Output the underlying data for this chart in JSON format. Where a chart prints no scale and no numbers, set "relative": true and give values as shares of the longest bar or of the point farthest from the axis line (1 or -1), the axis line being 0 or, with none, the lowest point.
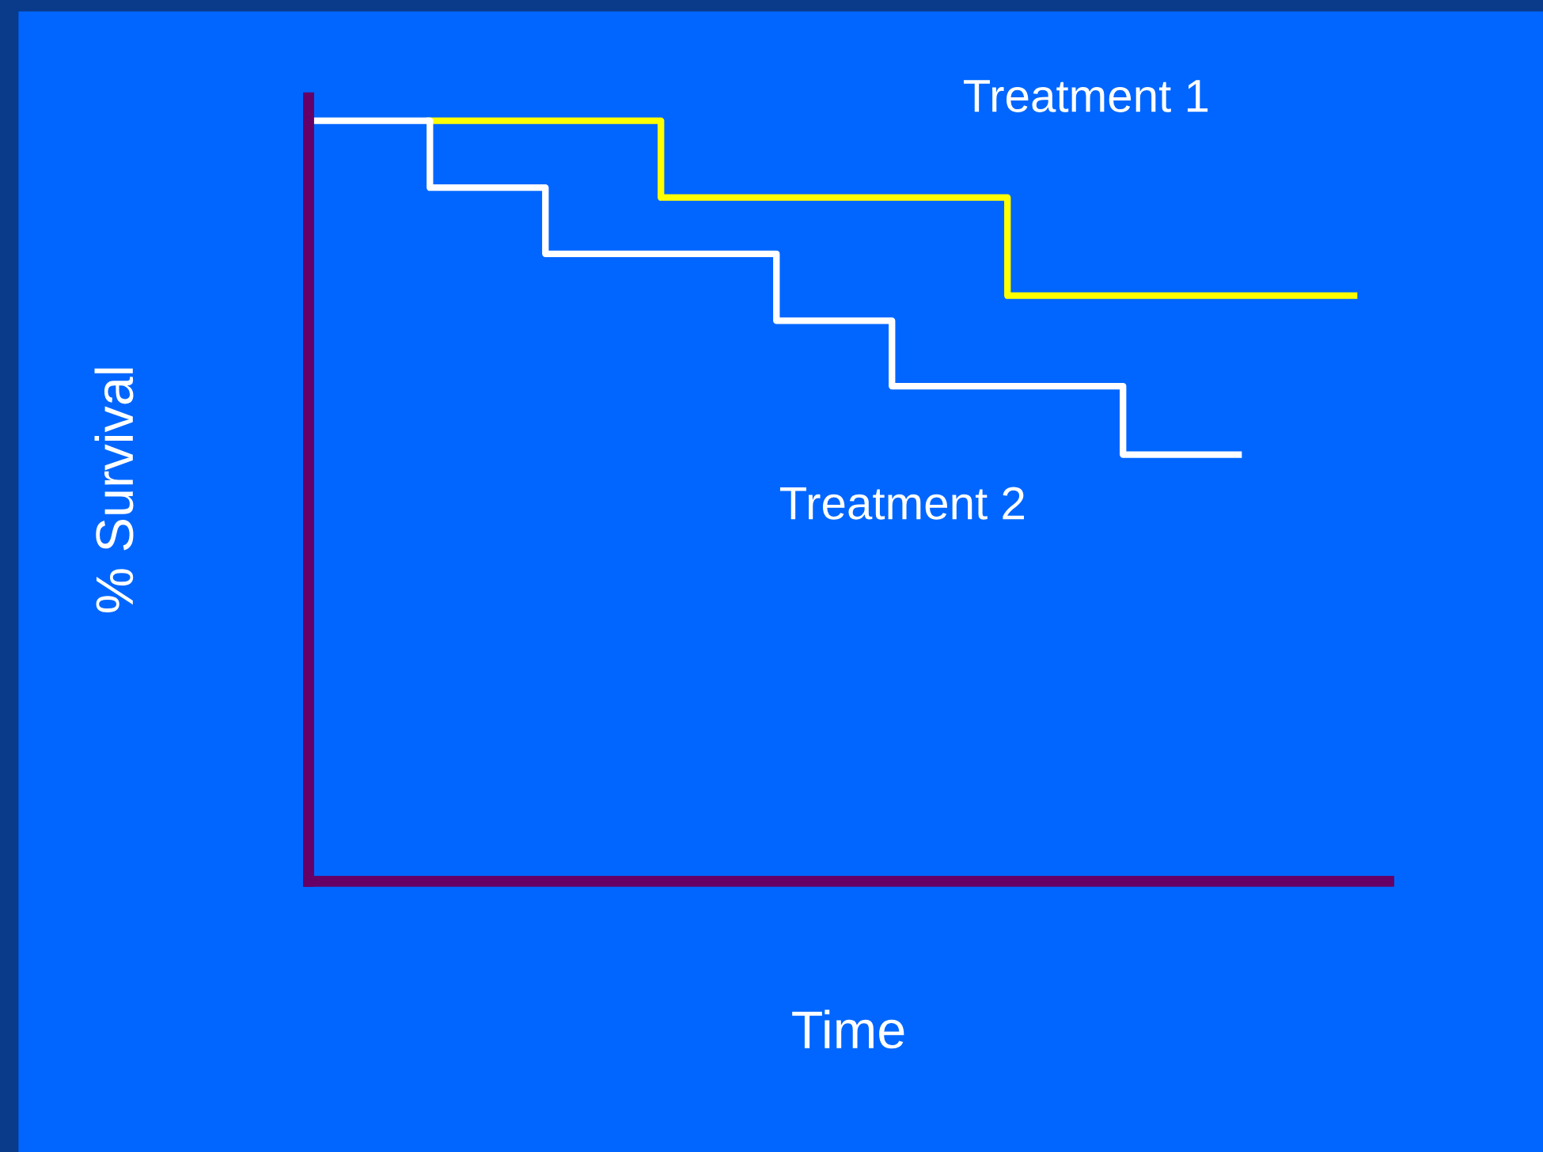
{
  "chart_data": {
    "type": "step",
    "relative": true,
    "xlabel": "Time",
    "ylabel": "% Survival",
    "categories": [
      null,
      null,
      null,
      null,
      null,
      null,
      null,
      null,
      null,
      null
    ],
    "series": [
      {
        "name": "Treatment 1",
        "color": "#ffff00",
        "values": [
          null,
          1,
          1,
          0.899,
          0.899,
          0.899,
          0.77,
          0.77,
          0.77,
          0.77
        ]
      },
      {
        "name": "Treatment 2",
        "color": "#ffffff",
        "values": [
          1,
          0.912,
          0.825,
          0.825,
          0.737,
          0.651,
          0.651,
          0.561,
          0.561,
          null
        ]
      }
    ],
    "grid": false,
    "legend": false
  }
}
